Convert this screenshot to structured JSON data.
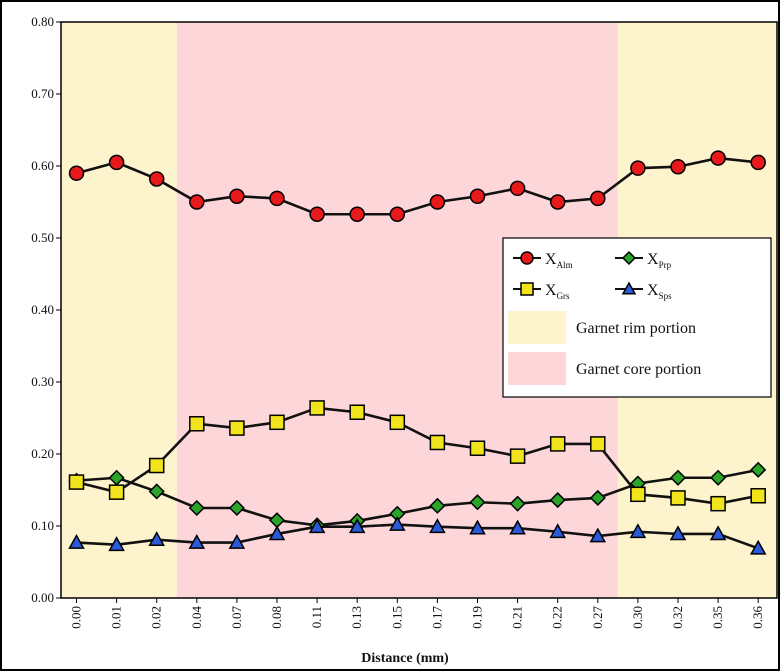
{
  "chart_data": {
    "type": "line",
    "title": "",
    "xlabel": "Distance (mm)",
    "ylabel": "",
    "ylim": [
      0.0,
      0.8
    ],
    "y_ticks": [
      "0.00",
      "0.10",
      "0.20",
      "0.30",
      "0.40",
      "0.50",
      "0.60",
      "0.70",
      "0.80"
    ],
    "categories": [
      "0.00",
      "0.01",
      "0.02",
      "0.04",
      "0.07",
      "0.08",
      "0.11",
      "0.13",
      "0.15",
      "0.17",
      "0.19",
      "0.21",
      "0.22",
      "0.27",
      "0.30",
      "0.32",
      "0.35",
      "0.36"
    ],
    "grid": false,
    "legend_position": "right",
    "series": [
      {
        "name": "X",
        "sub": "Alm",
        "marker": "circle",
        "color": "#e8191b",
        "values": [
          0.59,
          0.605,
          0.582,
          0.55,
          0.558,
          0.555,
          0.533,
          0.533,
          0.533,
          0.55,
          0.558,
          0.569,
          0.55,
          0.555,
          0.597,
          0.599,
          0.611,
          0.605
        ]
      },
      {
        "name": "X",
        "sub": "Prp",
        "marker": "diamond",
        "color": "#2aa52a",
        "values": [
          0.163,
          0.167,
          0.148,
          0.125,
          0.125,
          0.108,
          0.101,
          0.107,
          0.117,
          0.128,
          0.133,
          0.131,
          0.136,
          0.139,
          0.159,
          0.167,
          0.167,
          0.178
        ]
      },
      {
        "name": "X",
        "sub": "Grs",
        "marker": "square",
        "color": "#f2e41c",
        "values": [
          0.161,
          0.147,
          0.184,
          0.242,
          0.236,
          0.244,
          0.264,
          0.258,
          0.244,
          0.216,
          0.208,
          0.197,
          0.214,
          0.214,
          0.144,
          0.139,
          0.131,
          0.142
        ]
      },
      {
        "name": "X",
        "sub": "Sps",
        "marker": "triangle",
        "color": "#2a5ad8",
        "values": [
          0.077,
          0.074,
          0.081,
          0.077,
          0.077,
          0.089,
          0.099,
          0.099,
          0.102,
          0.099,
          0.097,
          0.097,
          0.092,
          0.086,
          0.092,
          0.089,
          0.089,
          0.069
        ]
      }
    ],
    "regions": [
      {
        "label": "Garnet rim portion",
        "color": "#fdf3cc",
        "from_index": 0,
        "to_index": 2
      },
      {
        "label": "Garnet core portion",
        "color": "#fdd6da",
        "from_index": 3,
        "to_index": 13
      },
      {
        "label": "Garnet rim portion",
        "color": "#fdf3cc",
        "from_index": 14,
        "to_index": 17
      }
    ],
    "legend_region_labels": [
      "Garnet rim portion",
      "Garnet core portion"
    ]
  }
}
